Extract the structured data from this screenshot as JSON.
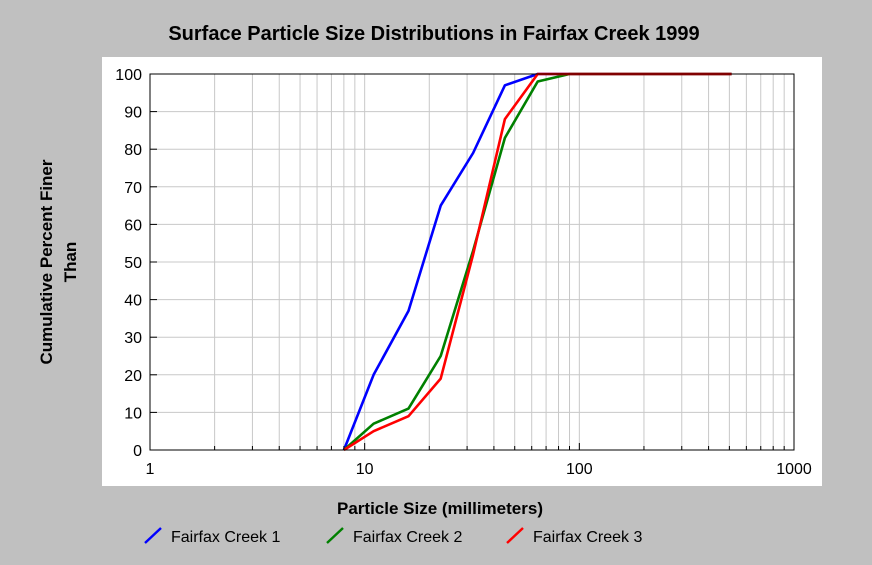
{
  "chart_data": {
    "type": "line",
    "title": "Surface Particle Size Distributions in Fairfax Creek 1999",
    "xlabel": "Particle Size (millimeters)",
    "ylabel_lines": [
      "Cumulative Percent Finer",
      "Than"
    ],
    "x_scale": "log",
    "xlim": [
      1,
      1000
    ],
    "ylim": [
      0,
      100
    ],
    "x_ticks": [
      "1",
      "10",
      "100",
      "1000"
    ],
    "y_ticks": [
      "0",
      "10",
      "20",
      "30",
      "40",
      "50",
      "60",
      "70",
      "80",
      "90",
      "100"
    ],
    "grid": true,
    "legend_position": "bottom",
    "series": [
      {
        "name": "Fairfax Creek 1",
        "color": "#0000ff",
        "x": [
          8,
          11,
          16,
          22.6,
          32,
          45,
          64,
          90,
          128,
          180,
          256,
          512
        ],
        "y": [
          0,
          20,
          37,
          65,
          79,
          97,
          100,
          100,
          100,
          100,
          100,
          100
        ]
      },
      {
        "name": "Fairfax Creek 2",
        "color": "#008000",
        "x": [
          8,
          11,
          16,
          22.6,
          32,
          45,
          64,
          90,
          128,
          180,
          256,
          512
        ],
        "y": [
          0,
          7,
          11,
          25,
          53,
          83,
          98,
          100,
          100,
          100,
          100,
          100
        ]
      },
      {
        "name": "Fairfax Creek 3",
        "color": "#ff0000",
        "x": [
          8,
          11,
          16,
          22.6,
          32,
          45,
          64,
          90,
          128,
          180,
          256,
          512
        ],
        "y": [
          0,
          5,
          9,
          19,
          52,
          88,
          100,
          100,
          100,
          100,
          100,
          100
        ]
      }
    ]
  }
}
